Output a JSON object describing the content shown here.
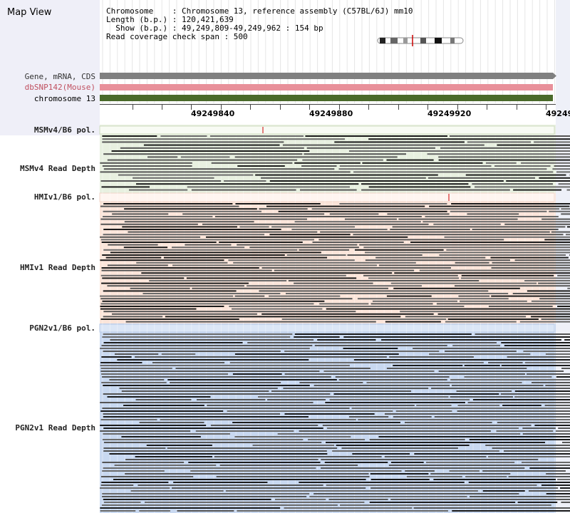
{
  "map_title": "Map View",
  "info": {
    "line1": "Chromosome    : Chromosome 13, reference assembly (C57BL/6J) mm10",
    "line2": "Length (b.p.) : 120,421,639",
    "line3": "  Show (b.p.) : 49,249,809-49,249,962 : 154 bp",
    "line4": "Read coverage check span : 500"
  },
  "tracks": {
    "gene": "Gene, mRNA, CDS",
    "snp": "dbSNP142(Mouse)",
    "chrom": "chromosome 13"
  },
  "ruler": {
    "ticks": [
      "49249840",
      "49249880",
      "49249920",
      "49249"
    ]
  },
  "sections": {
    "msm_pol": "MSMv4/B6 pol.",
    "msm_depth": "MSMv4 Read Depth",
    "hmi_pol": "HMIv1/B6 pol.",
    "hmi_depth": "HMIv1 Read Depth",
    "pgn_pol": "PGN2v1/B6 pol.",
    "pgn_depth": "PGN2v1 Read Depth"
  },
  "colors": {
    "gene_track": "#808080",
    "snp_track": "#e8909a",
    "chrom_track": "#4a6a2a",
    "msm_bg": "#e8f0e0",
    "hmi_bg": "#fbe5da",
    "pgn_bg": "#c8d8f0",
    "read": "#555555",
    "snp_mark": "#cc0000"
  }
}
